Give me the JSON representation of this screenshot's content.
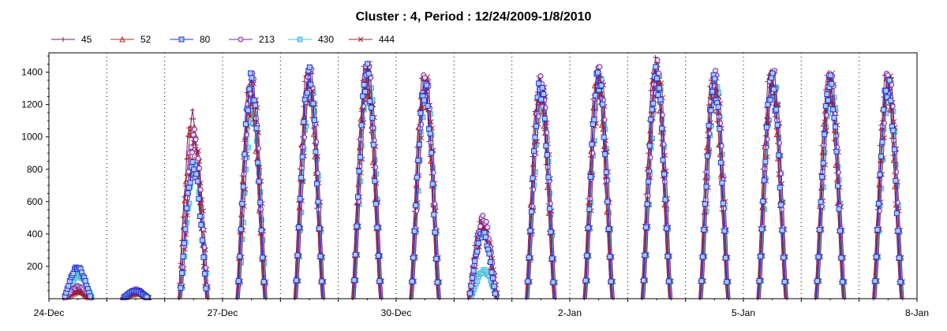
{
  "chart_data": {
    "type": "line",
    "title": "Cluster : 4, Period : 12/24/2009-1/8/2010",
    "xlabel": "",
    "ylabel": "",
    "x_tick_labels": [
      "24-Dec",
      "27-Dec",
      "30-Dec",
      "2-Jan",
      "5-Jan",
      "8-Jan"
    ],
    "x_tick_days": [
      0,
      3,
      6,
      9,
      12,
      15
    ],
    "xlim_days": [
      0,
      15
    ],
    "y_ticks": [
      200,
      400,
      600,
      800,
      1000,
      1200,
      1400
    ],
    "ylim": [
      0,
      1520
    ],
    "grid": "vertical dotted daily",
    "legend_position": "top-left",
    "series": [
      {
        "name": "45",
        "color": "#7a1f5c",
        "marker": "plus"
      },
      {
        "name": "52",
        "color": "#b5282a",
        "marker": "triangle"
      },
      {
        "name": "80",
        "color": "#2233cc",
        "marker": "square"
      },
      {
        "name": "213",
        "color": "#7a2a9a",
        "marker": "circle"
      },
      {
        "name": "430",
        "color": "#33cccc",
        "marker": "square"
      },
      {
        "name": "444",
        "color": "#a01e2e",
        "marker": "x"
      }
    ],
    "daily_peaks": [
      {
        "day": 0,
        "values": [
          60,
          50,
          200,
          80,
          150,
          40
        ]
      },
      {
        "day": 1,
        "values": [
          40,
          40,
          50,
          60,
          40,
          30
        ]
      },
      {
        "day": 2,
        "values": [
          1170,
          1100,
          850,
          1050,
          850,
          1000
        ]
      },
      {
        "day": 3,
        "values": [
          1380,
          1350,
          1400,
          1410,
          1200,
          1380
        ]
      },
      {
        "day": 4,
        "values": [
          1450,
          1430,
          1440,
          1460,
          1380,
          1420
        ]
      },
      {
        "day": 5,
        "values": [
          1480,
          1440,
          1460,
          1490,
          1440,
          1460
        ]
      },
      {
        "day": 6,
        "values": [
          1400,
          1380,
          1360,
          1420,
          1340,
          1390
        ]
      },
      {
        "day": 7,
        "values": [
          500,
          480,
          420,
          520,
          180,
          470
        ]
      },
      {
        "day": 8,
        "values": [
          1380,
          1350,
          1370,
          1380,
          1300,
          1360
        ]
      },
      {
        "day": 9,
        "values": [
          1440,
          1420,
          1430,
          1450,
          1400,
          1430
        ]
      },
      {
        "day": 10,
        "values": [
          1500,
          1460,
          1440,
          1480,
          1420,
          1460
        ]
      },
      {
        "day": 11,
        "values": [
          1420,
          1400,
          1390,
          1430,
          1380,
          1410
        ]
      },
      {
        "day": 12,
        "values": [
          1450,
          1420,
          1400,
          1450,
          1420,
          1420
        ]
      },
      {
        "day": 13,
        "values": [
          1420,
          1400,
          1390,
          1430,
          1380,
          1400
        ]
      },
      {
        "day": 14,
        "values": [
          1420,
          1380,
          1390,
          1430,
          1360,
          1400
        ]
      }
    ]
  }
}
